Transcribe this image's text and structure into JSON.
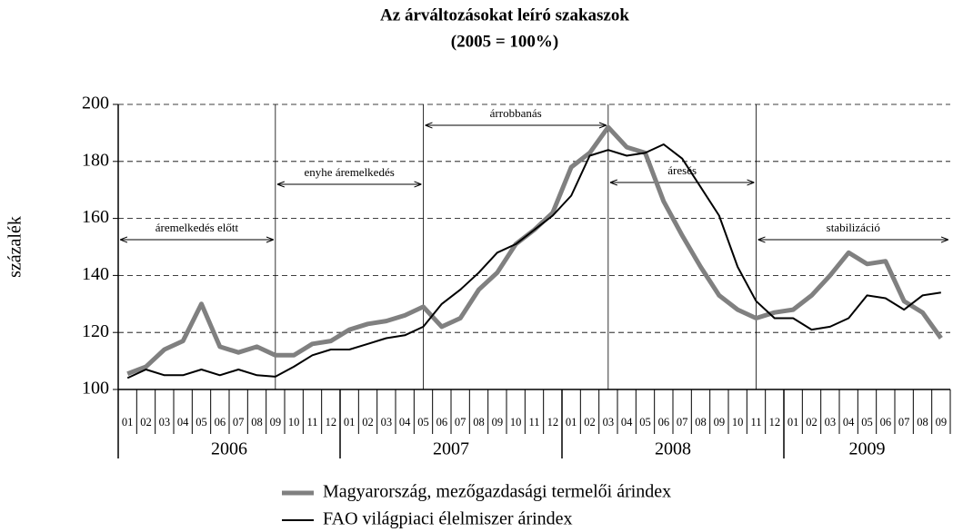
{
  "chart_data": {
    "type": "line",
    "title": "Az árváltozásokat leíró szakaszok",
    "subtitle": "(2005 = 100%)",
    "y_label": "százalék",
    "categories": [
      "01",
      "02",
      "03",
      "04",
      "05",
      "06",
      "07",
      "08",
      "09",
      "10",
      "11",
      "12",
      "01",
      "02",
      "03",
      "04",
      "05",
      "06",
      "07",
      "08",
      "09",
      "10",
      "11",
      "12",
      "01",
      "02",
      "03",
      "04",
      "05",
      "06",
      "07",
      "08",
      "09",
      "10",
      "11",
      "12",
      "01",
      "02",
      "03",
      "04",
      "05",
      "06",
      "07",
      "08",
      "09"
    ],
    "years": [
      "2006",
      "2007",
      "2008",
      "2009"
    ],
    "series": [
      {
        "name": "Magyarország, mezőgazdasági termelői árindex",
        "color": "#808080",
        "values": [
          105.5,
          108,
          114,
          117,
          130,
          115,
          113,
          115,
          112,
          112,
          116,
          117,
          121,
          123,
          124,
          126,
          129,
          122,
          125,
          135,
          141,
          151,
          156,
          162,
          178,
          183,
          192,
          185,
          183,
          166,
          154,
          143,
          133,
          128,
          125,
          127,
          128,
          133,
          140,
          148,
          144,
          145,
          131,
          127,
          118
        ]
      },
      {
        "name": "FAO világpiaci élelmiszer árindex",
        "color": "#000000",
        "values": [
          104,
          107,
          105,
          105,
          107,
          105,
          107,
          105,
          104.5,
          108,
          112,
          114,
          114,
          116,
          118,
          119,
          122,
          130,
          135,
          141,
          148,
          151,
          156,
          161,
          168,
          182,
          184,
          182,
          183,
          186,
          181,
          171,
          161,
          143,
          131,
          125,
          125,
          121,
          122,
          125,
          133,
          132,
          128,
          133,
          134
        ]
      }
    ],
    "annotations": [
      "áremelkedés előtt",
      "enyhe áremelkedés",
      "árrobbanás",
      "áresés",
      "stabilizáció"
    ],
    "ylim": [
      100,
      200
    ],
    "yticks": [
      100,
      120,
      140,
      160,
      180,
      200
    ],
    "grid": true
  }
}
